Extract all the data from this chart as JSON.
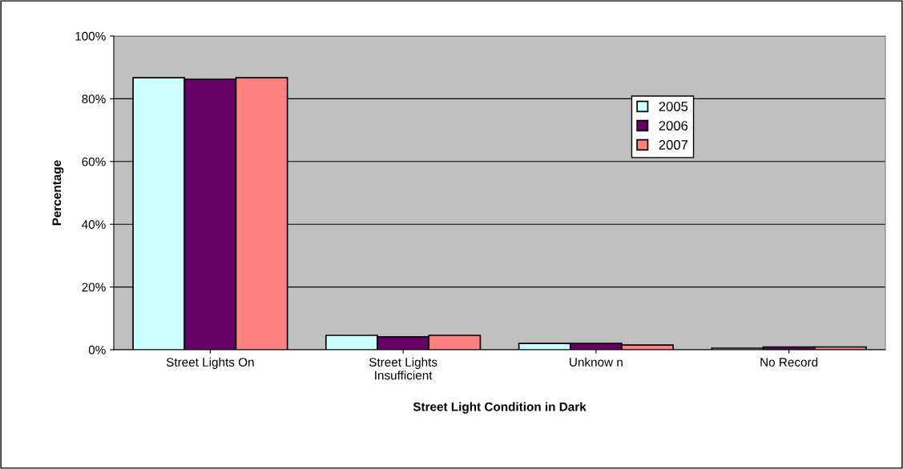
{
  "chart_data": {
    "type": "bar",
    "xlabel": "Street Light Condition in Dark",
    "ylabel": "Percentage",
    "categories": [
      "Street Lights On",
      "Street Lights\nInsufficient",
      "Unknow n",
      "No Record"
    ],
    "series": [
      {
        "name": "2005",
        "color": "#ccffff",
        "values": [
          86.7,
          4.6,
          2.0,
          0.5
        ]
      },
      {
        "name": "2006",
        "color": "#660066",
        "values": [
          86.2,
          4.1,
          2.0,
          0.9
        ]
      },
      {
        "name": "2007",
        "color": "#ff8080",
        "values": [
          86.7,
          4.6,
          1.5,
          0.9
        ]
      }
    ],
    "ylim": [
      0,
      100
    ],
    "yticks": [
      {
        "value": 0,
        "label": "0%"
      },
      {
        "value": 20,
        "label": "20%"
      },
      {
        "value": 40,
        "label": "40%"
      },
      {
        "value": 60,
        "label": "60%"
      },
      {
        "value": 80,
        "label": "80%"
      },
      {
        "value": 100,
        "label": "100%"
      }
    ],
    "grid": "y",
    "legend": "top right"
  }
}
